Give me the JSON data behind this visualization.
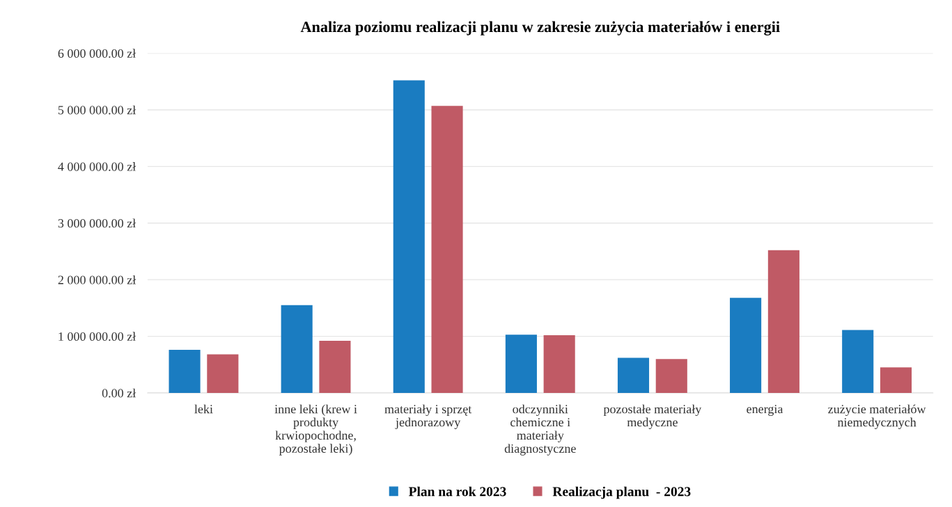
{
  "chart_data": {
    "type": "bar",
    "title": "Analiza poziomu realizacji planu w zakresie zużycia materiałów i energii",
    "categories": [
      "leki",
      "inne leki (krew i\nprodukty\nkrwiopochodne,\npozostałe leki)",
      "materiały i sprzęt\njednorazowy",
      "odczynniki\nchemiczne i\nmateriały\ndiagnostyczne",
      "pozostałe materiały\nmedyczne",
      "energia",
      "zużycie materiałów\nniemedycznych"
    ],
    "series": [
      {
        "name": "Plan na rok 2023",
        "color": "#1a7cc1",
        "values": [
          760000,
          1550000,
          5520000,
          1030000,
          620000,
          1680000,
          1110000
        ]
      },
      {
        "name": "Realizacja planu  - 2023",
        "color": "#c05a65",
        "values": [
          680000,
          920000,
          5070000,
          1020000,
          600000,
          2520000,
          450000
        ]
      }
    ],
    "ylim": [
      0,
      6000000
    ],
    "yticks": [
      {
        "value": 0,
        "label": "0.00 zł"
      },
      {
        "value": 1000000,
        "label": "1 000 000.00 zł"
      },
      {
        "value": 2000000,
        "label": "2 000 000.00 zł"
      },
      {
        "value": 3000000,
        "label": "3 000 000.00 zł"
      },
      {
        "value": 4000000,
        "label": "4 000 000.00 zł"
      },
      {
        "value": 5000000,
        "label": "5 000 000.00 zł"
      },
      {
        "value": 6000000,
        "label": "6 000 000.00 zł"
      }
    ],
    "grid": "y",
    "legend": "bottom"
  }
}
